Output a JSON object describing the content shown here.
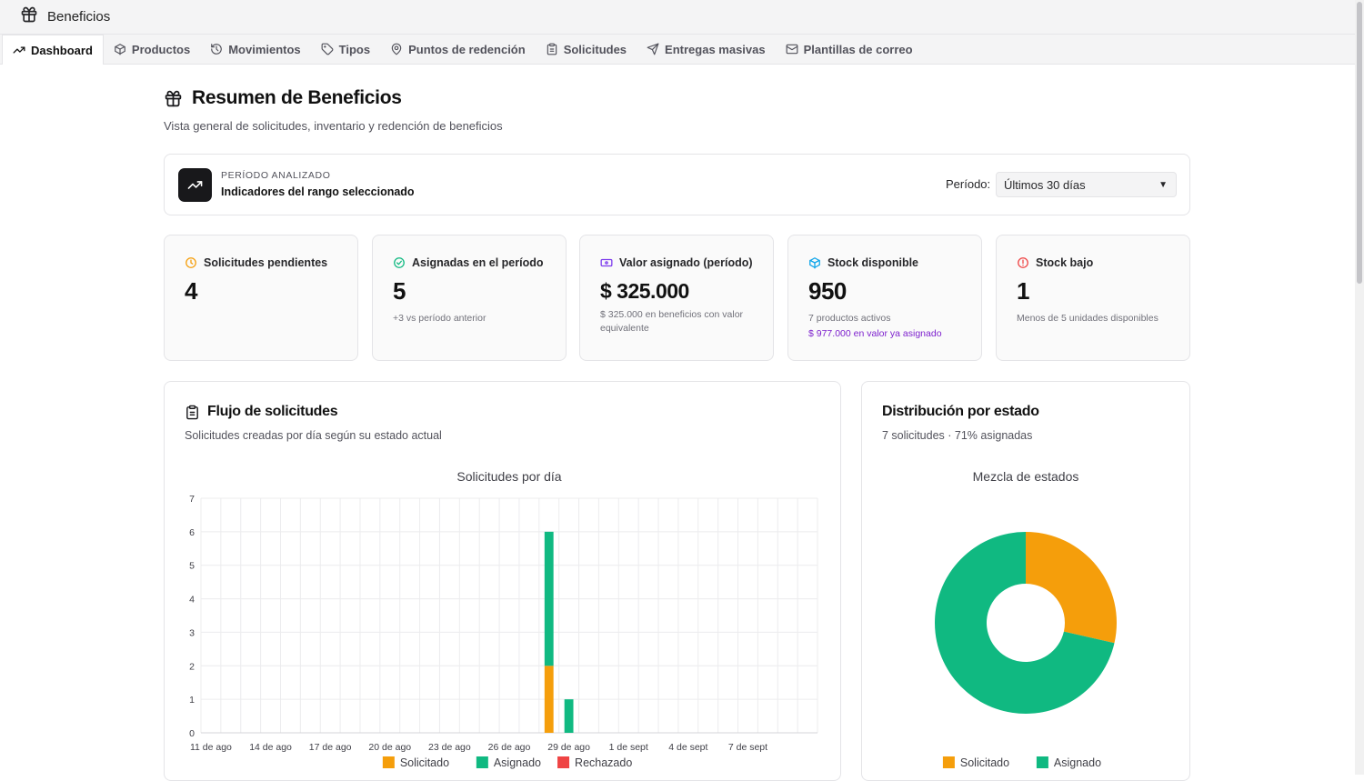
{
  "app": {
    "title": "Beneficios"
  },
  "tabs": [
    {
      "label": "Dashboard",
      "icon": "trending-up-icon",
      "active": true
    },
    {
      "label": "Productos",
      "icon": "box-icon"
    },
    {
      "label": "Movimientos",
      "icon": "history-icon"
    },
    {
      "label": "Tipos",
      "icon": "tag-icon"
    },
    {
      "label": "Puntos de redención",
      "icon": "map-pin-icon"
    },
    {
      "label": "Solicitudes",
      "icon": "clipboard-icon"
    },
    {
      "label": "Entregas masivas",
      "icon": "send-icon"
    },
    {
      "label": "Plantillas de correo",
      "icon": "mail-icon"
    }
  ],
  "page": {
    "title": "Resumen de Beneficios",
    "subtitle": "Vista general de solicitudes, inventario y redención de beneficios"
  },
  "period": {
    "eyebrow": "PERÍODO ANALIZADO",
    "title": "Indicadores del rango seleccionado",
    "label": "Período:",
    "selected": "Últimos 30 días"
  },
  "stats": [
    {
      "label": "Solicitudes pendientes",
      "value": "4",
      "note": "",
      "note2": "",
      "icon": "clock-icon",
      "color": "#f59e0b"
    },
    {
      "label": "Asignadas en el período",
      "value": "5",
      "note": "+3 vs período anterior",
      "note2": "",
      "icon": "check-circle-icon",
      "color": "#10b981"
    },
    {
      "label": "Valor asignado (período)",
      "value": "$ 325.000",
      "note": "$ 325.000 en beneficios con valor equivalente",
      "note2": "",
      "icon": "banknote-icon",
      "color": "#7c3aed"
    },
    {
      "label": "Stock disponible",
      "value": "950",
      "note": "7 productos activos",
      "note2": "$ 977.000 en valor ya asignado",
      "icon": "package-icon",
      "color": "#0ea5e9"
    },
    {
      "label": "Stock bajo",
      "value": "1",
      "note": "Menos de 5 unidades disponibles",
      "note2": "",
      "icon": "alert-circle-icon",
      "color": "#ef4444"
    }
  ],
  "flow_panel": {
    "title": "Flujo de solicitudes",
    "subtitle": "Solicitudes creadas por día según su estado actual"
  },
  "dist_panel": {
    "title": "Distribución por estado",
    "subtitle": "7 solicitudes · 71% asignadas"
  },
  "chart_data": [
    {
      "type": "bar",
      "stacked": true,
      "title": "Solicitudes por día",
      "ylim": [
        0,
        7
      ],
      "yticks": [
        0,
        1,
        2,
        3,
        4,
        5,
        6,
        7
      ],
      "x_tick_labels": [
        "11 de ago",
        "14 de ago",
        "17 de ago",
        "20 de ago",
        "23 de ago",
        "26 de ago",
        "29 de ago",
        "1 de sept",
        "4 de sept",
        "7 de sept"
      ],
      "categories": [
        "11 de ago",
        "12 de ago",
        "13 de ago",
        "14 de ago",
        "15 de ago",
        "16 de ago",
        "17 de ago",
        "18 de ago",
        "19 de ago",
        "20 de ago",
        "21 de ago",
        "22 de ago",
        "23 de ago",
        "24 de ago",
        "25 de ago",
        "26 de ago",
        "27 de ago",
        "28 de ago",
        "29 de ago",
        "30 de ago",
        "31 de ago",
        "1 de sept",
        "2 de sept",
        "3 de sept",
        "4 de sept",
        "5 de sept",
        "6 de sept",
        "7 de sept",
        "8 de sept",
        "9 de sept",
        "10 de sept"
      ],
      "series": [
        {
          "name": "Solicitado",
          "color": "#f59e0b",
          "values": [
            0,
            0,
            0,
            0,
            0,
            0,
            0,
            0,
            0,
            0,
            0,
            0,
            0,
            0,
            0,
            0,
            0,
            2,
            0,
            0,
            0,
            0,
            0,
            0,
            0,
            0,
            0,
            0,
            0,
            0,
            0
          ]
        },
        {
          "name": "Asignado",
          "color": "#10b981",
          "values": [
            0,
            0,
            0,
            0,
            0,
            0,
            0,
            0,
            0,
            0,
            0,
            0,
            0,
            0,
            0,
            0,
            0,
            4,
            1,
            0,
            0,
            0,
            0,
            0,
            0,
            0,
            0,
            0,
            0,
            0,
            0
          ]
        },
        {
          "name": "Rechazado",
          "color": "#ef4444",
          "values": [
            0,
            0,
            0,
            0,
            0,
            0,
            0,
            0,
            0,
            0,
            0,
            0,
            0,
            0,
            0,
            0,
            0,
            0,
            0,
            0,
            0,
            0,
            0,
            0,
            0,
            0,
            0,
            0,
            0,
            0,
            0
          ]
        }
      ],
      "grid": true,
      "legend": "bottom"
    },
    {
      "type": "pie",
      "donut": true,
      "title": "Mezcla de estados",
      "slices": [
        {
          "name": "Solicitado",
          "value": 2,
          "color": "#f59e0b"
        },
        {
          "name": "Asignado",
          "value": 5,
          "color": "#10b981"
        }
      ],
      "legend": "bottom"
    }
  ]
}
